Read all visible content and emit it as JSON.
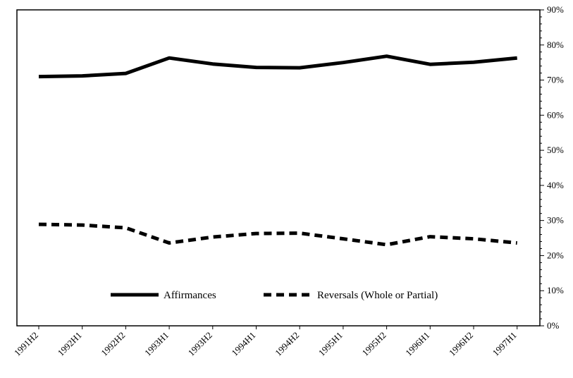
{
  "chart_data": {
    "type": "line",
    "categories": [
      "1991H2",
      "1992H1",
      "1992H2",
      "1993H1",
      "1993H2",
      "1994H1",
      "1994H2",
      "1995H1",
      "1995H2",
      "1996H1",
      "1996H2",
      "1997H1"
    ],
    "series": [
      {
        "name": "Affirmances",
        "style": "solid",
        "values": [
          71.0,
          71.2,
          71.9,
          76.3,
          74.6,
          73.6,
          73.5,
          75.0,
          76.8,
          74.5,
          75.1,
          76.3
        ]
      },
      {
        "name": "Reversals (Whole or Partial)",
        "style": "dashed",
        "values": [
          28.9,
          28.7,
          27.9,
          23.6,
          25.3,
          26.3,
          26.4,
          24.8,
          23.1,
          25.4,
          24.8,
          23.6
        ]
      }
    ],
    "yaxis": {
      "side": "right",
      "min": 0,
      "max": 90,
      "step": 10,
      "tick_labels": [
        "0%",
        "10%",
        "20%",
        "30%",
        "40%",
        "50%",
        "60%",
        "70%",
        "80%",
        "90%"
      ]
    },
    "title": "",
    "xlabel": "",
    "ylabel": "",
    "legend_position": "bottom-center",
    "grid": false,
    "line_color": "#000000"
  }
}
